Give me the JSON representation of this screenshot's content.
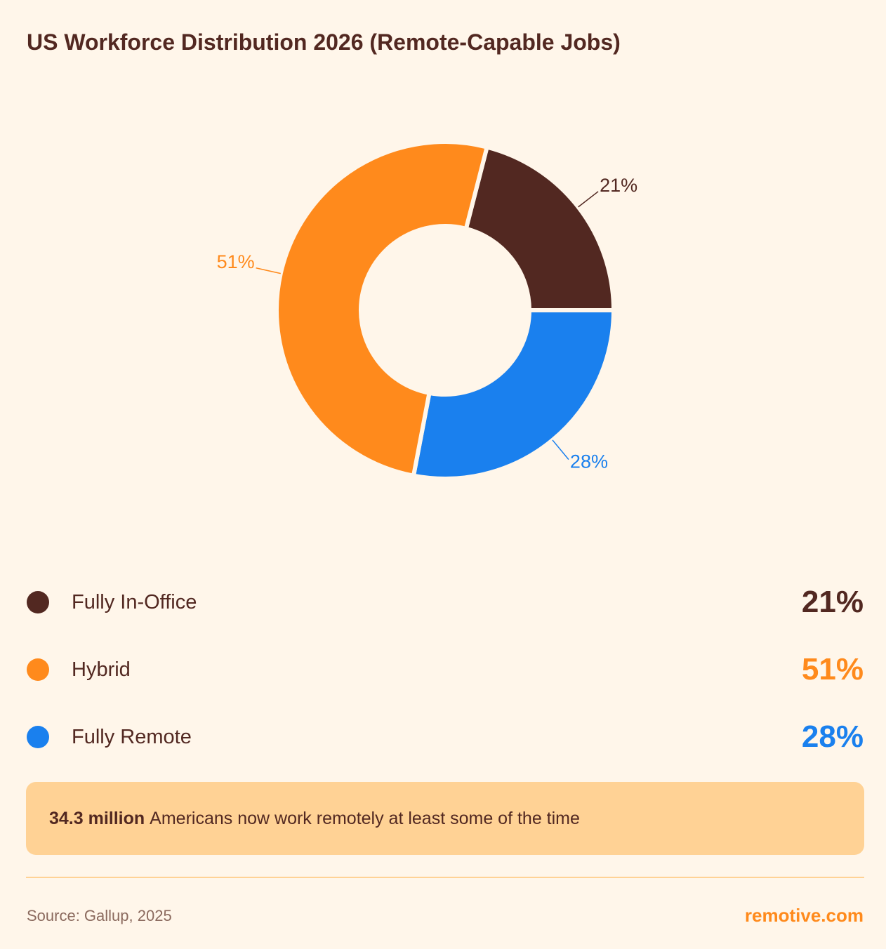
{
  "chart_data": {
    "type": "pie",
    "variant": "donut",
    "title": "US Workforce Distribution 2026 (Remote-Capable Jobs)",
    "categories": [
      "Fully In-Office",
      "Fully Remote",
      "Hybrid"
    ],
    "values": [
      21,
      28,
      51
    ],
    "labels": [
      "21%",
      "28%",
      "51%"
    ],
    "colors": [
      "#522821",
      "#1A80EE",
      "#FF8A1C"
    ],
    "legend_placement": "bottom"
  },
  "legend": [
    {
      "name": "Fully In-Office",
      "value": "21%",
      "color": "#522821"
    },
    {
      "name": "Hybrid",
      "value": "51%",
      "color": "#FF8A1C"
    },
    {
      "name": "Fully Remote",
      "value": "28%",
      "color": "#1A80EE"
    }
  ],
  "callout": {
    "highlight": "34.3 million",
    "text": "Americans now work remotely at least some of the time"
  },
  "footer": {
    "source": "Source: Gallup, 2025",
    "brand": "remotive.com"
  },
  "colors": {
    "background": "#FFF6EA",
    "callout": "#FFD295"
  }
}
